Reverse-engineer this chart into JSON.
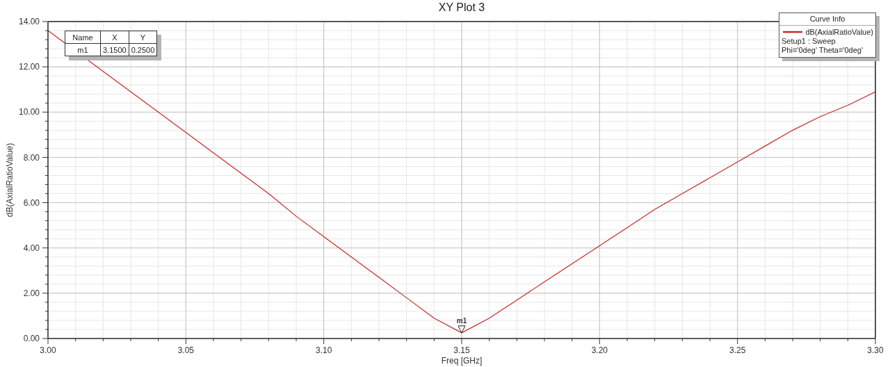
{
  "chart_data": {
    "type": "line",
    "title": "XY Plot 3",
    "xlabel": "Freq [GHz]",
    "ylabel": "dB(AxialRatioValue)",
    "legend_title": "Curve Info",
    "x": [
      3.0,
      3.01,
      3.02,
      3.03,
      3.04,
      3.05,
      3.06,
      3.07,
      3.08,
      3.09,
      3.1,
      3.11,
      3.12,
      3.13,
      3.14,
      3.15,
      3.16,
      3.17,
      3.18,
      3.19,
      3.2,
      3.21,
      3.22,
      3.23,
      3.24,
      3.25,
      3.26,
      3.27,
      3.28,
      3.29,
      3.3
    ],
    "series": [
      {
        "name": "dB(AxialRatioValue)",
        "color": "#c82828",
        "values": [
          13.6,
          null,
          11.8,
          10.9,
          10.0,
          9.1,
          8.2,
          7.3,
          6.4,
          5.4,
          4.5,
          3.6,
          2.7,
          1.8,
          0.9,
          0.25,
          0.9,
          1.7,
          2.5,
          3.3,
          4.1,
          4.9,
          5.7,
          6.4,
          7.1,
          7.8,
          8.5,
          9.2,
          9.8,
          10.3,
          10.9
        ]
      }
    ],
    "xlim": [
      3.0,
      3.3
    ],
    "xticks": [
      {
        "value": 3.0,
        "label": "3.00"
      },
      {
        "value": 3.01,
        "label": null
      },
      {
        "value": 3.02,
        "label": null
      },
      {
        "value": 3.03,
        "label": null
      },
      {
        "value": 3.04,
        "label": null
      },
      {
        "value": 3.05,
        "label": "3.05"
      },
      {
        "value": 3.06,
        "label": null
      },
      {
        "value": 3.07,
        "label": null
      },
      {
        "value": 3.08,
        "label": null
      },
      {
        "value": 3.09,
        "label": null
      },
      {
        "value": 3.1,
        "label": "3.10"
      },
      {
        "value": 3.11,
        "label": null
      },
      {
        "value": 3.12,
        "label": null
      },
      {
        "value": 3.13,
        "label": null
      },
      {
        "value": 3.14,
        "label": null
      },
      {
        "value": 3.15,
        "label": "3.15"
      },
      {
        "value": 3.16,
        "label": null
      },
      {
        "value": 3.17,
        "label": null
      },
      {
        "value": 3.18,
        "label": null
      },
      {
        "value": 3.19,
        "label": null
      },
      {
        "value": 3.2,
        "label": "3.20"
      },
      {
        "value": 3.21,
        "label": null
      },
      {
        "value": 3.22,
        "label": null
      },
      {
        "value": 3.23,
        "label": null
      },
      {
        "value": 3.24,
        "label": null
      },
      {
        "value": 3.25,
        "label": "3.25"
      },
      {
        "value": 3.26,
        "label": null
      },
      {
        "value": 3.27,
        "label": null
      },
      {
        "value": 3.28,
        "label": null
      },
      {
        "value": 3.29,
        "label": null
      },
      {
        "value": 3.3,
        "label": "3.30"
      }
    ],
    "ylim": [
      0,
      14
    ],
    "yticks": [
      {
        "value": 0,
        "label": "0.00"
      },
      {
        "value": 0.4,
        "label": null
      },
      {
        "value": 0.8,
        "label": null
      },
      {
        "value": 1.2,
        "label": null
      },
      {
        "value": 1.6,
        "label": null
      },
      {
        "value": 2,
        "label": "2.00"
      },
      {
        "value": 2.4,
        "label": null
      },
      {
        "value": 2.8,
        "label": null
      },
      {
        "value": 3.2,
        "label": null
      },
      {
        "value": 3.6,
        "label": null
      },
      {
        "value": 4,
        "label": "4.00"
      },
      {
        "value": 4.4,
        "label": null
      },
      {
        "value": 4.8,
        "label": null
      },
      {
        "value": 5.2,
        "label": null
      },
      {
        "value": 5.6,
        "label": null
      },
      {
        "value": 6,
        "label": "6.00"
      },
      {
        "value": 6.4,
        "label": null
      },
      {
        "value": 6.8,
        "label": null
      },
      {
        "value": 7.2,
        "label": null
      },
      {
        "value": 7.6,
        "label": null
      },
      {
        "value": 8,
        "label": "8.00"
      },
      {
        "value": 8.4,
        "label": null
      },
      {
        "value": 8.8,
        "label": null
      },
      {
        "value": 9.2,
        "label": null
      },
      {
        "value": 9.6,
        "label": null
      },
      {
        "value": 10,
        "label": "10.00"
      },
      {
        "value": 10.4,
        "label": null
      },
      {
        "value": 10.8,
        "label": null
      },
      {
        "value": 11.2,
        "label": null
      },
      {
        "value": 11.6,
        "label": null
      },
      {
        "value": 12,
        "label": "12.00"
      },
      {
        "value": 12.4,
        "label": null
      },
      {
        "value": 12.8,
        "label": null
      },
      {
        "value": 13.2,
        "label": null
      },
      {
        "value": 13.6,
        "label": null
      },
      {
        "value": 14,
        "label": "14.00"
      }
    ],
    "grid": true,
    "legend": "top right",
    "annotations": [
      {
        "text": "m1",
        "x": 3.15,
        "y": 0.25
      },
      "Name",
      "X",
      "Y",
      "m1",
      "3.1500",
      "0.2500",
      "Setup1 : Sweep",
      "Phi='0deg' Theta='0deg'"
    ]
  }
}
